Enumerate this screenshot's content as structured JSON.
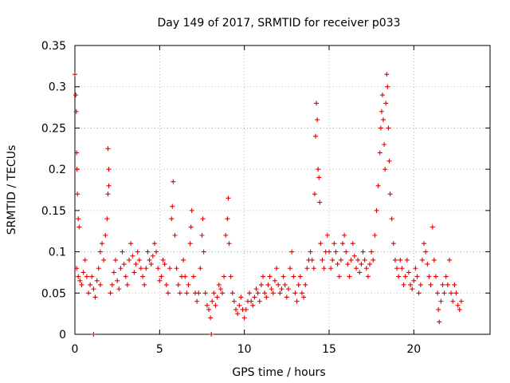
{
  "chart_data": {
    "type": "scatter",
    "title": "Day 149 of 2017, SRMTID for receiver p033",
    "xlabel": "GPS time / hours",
    "ylabel": "SRMTID / TECUs",
    "xlim": [
      0,
      24.5
    ],
    "ylim": [
      0,
      0.35
    ],
    "xticks": [
      0,
      5,
      10,
      15,
      20
    ],
    "yticks": [
      0,
      0.05,
      0.1,
      0.15,
      0.2,
      0.25,
      0.3,
      0.35
    ],
    "xtick_labels": [
      "0",
      "5",
      "10",
      "15",
      "20"
    ],
    "ytick_labels": [
      "0",
      "0.05",
      "0.1",
      "0.15",
      "0.2",
      "0.25",
      "0.3",
      "0.35"
    ],
    "grid": true,
    "marker": "+",
    "color": "#e00000",
    "series": [
      {
        "name": "SRMTID",
        "points": [
          [
            0.0,
            0.315
          ],
          [
            0.05,
            0.29
          ],
          [
            0.08,
            0.27
          ],
          [
            0.1,
            0.22
          ],
          [
            0.12,
            0.2
          ],
          [
            0.15,
            0.17
          ],
          [
            0.2,
            0.14
          ],
          [
            0.25,
            0.13
          ],
          [
            0.1,
            0.08
          ],
          [
            0.2,
            0.07
          ],
          [
            0.3,
            0.065
          ],
          [
            0.4,
            0.06
          ],
          [
            0.5,
            0.075
          ],
          [
            0.6,
            0.09
          ],
          [
            0.7,
            0.07
          ],
          [
            0.8,
            0.05
          ],
          [
            0.9,
            0.06
          ],
          [
            1.0,
            0.07
          ],
          [
            1.1,
            0.055
          ],
          [
            1.2,
            0.045
          ],
          [
            1.3,
            0.065
          ],
          [
            1.4,
            0.08
          ],
          [
            1.5,
            0.1
          ],
          [
            1.6,
            0.11
          ],
          [
            1.1,
            0.0
          ],
          [
            1.5,
            0.06
          ],
          [
            1.7,
            0.09
          ],
          [
            1.8,
            0.12
          ],
          [
            1.9,
            0.14
          ],
          [
            1.95,
            0.17
          ],
          [
            2.0,
            0.18
          ],
          [
            2.0,
            0.2
          ],
          [
            1.95,
            0.225
          ],
          [
            2.1,
            0.05
          ],
          [
            2.2,
            0.06
          ],
          [
            2.3,
            0.075
          ],
          [
            2.4,
            0.09
          ],
          [
            2.5,
            0.065
          ],
          [
            2.6,
            0.055
          ],
          [
            2.7,
            0.08
          ],
          [
            2.8,
            0.1
          ],
          [
            2.9,
            0.085
          ],
          [
            3.0,
            0.07
          ],
          [
            3.1,
            0.06
          ],
          [
            3.2,
            0.09
          ],
          [
            3.3,
            0.11
          ],
          [
            3.4,
            0.095
          ],
          [
            3.5,
            0.075
          ],
          [
            3.6,
            0.085
          ],
          [
            3.7,
            0.1
          ],
          [
            3.8,
            0.09
          ],
          [
            3.9,
            0.08
          ],
          [
            4.0,
            0.07
          ],
          [
            4.1,
            0.06
          ],
          [
            4.2,
            0.08
          ],
          [
            4.3,
            0.1
          ],
          [
            4.4,
            0.09
          ],
          [
            4.5,
            0.085
          ],
          [
            4.6,
            0.095
          ],
          [
            4.7,
            0.11
          ],
          [
            4.8,
            0.1
          ],
          [
            4.9,
            0.08
          ],
          [
            5.0,
            0.065
          ],
          [
            5.1,
            0.07
          ],
          [
            5.2,
            0.09
          ],
          [
            5.3,
            0.085
          ],
          [
            5.4,
            0.06
          ],
          [
            5.5,
            0.05
          ],
          [
            5.6,
            0.08
          ],
          [
            5.7,
            0.14
          ],
          [
            5.75,
            0.155
          ],
          [
            5.8,
            0.185
          ],
          [
            5.9,
            0.12
          ],
          [
            6.0,
            0.08
          ],
          [
            6.1,
            0.06
          ],
          [
            6.2,
            0.05
          ],
          [
            6.3,
            0.07
          ],
          [
            6.4,
            0.09
          ],
          [
            6.5,
            0.07
          ],
          [
            6.6,
            0.05
          ],
          [
            6.7,
            0.06
          ],
          [
            6.8,
            0.11
          ],
          [
            6.85,
            0.13
          ],
          [
            6.9,
            0.15
          ],
          [
            7.0,
            0.07
          ],
          [
            7.1,
            0.05
          ],
          [
            7.2,
            0.04
          ],
          [
            7.3,
            0.05
          ],
          [
            7.4,
            0.08
          ],
          [
            7.5,
            0.12
          ],
          [
            7.55,
            0.14
          ],
          [
            7.6,
            0.1
          ],
          [
            7.7,
            0.05
          ],
          [
            7.8,
            0.035
          ],
          [
            7.9,
            0.03
          ],
          [
            8.0,
            0.02
          ],
          [
            8.05,
            0.0
          ],
          [
            8.1,
            0.04
          ],
          [
            8.2,
            0.05
          ],
          [
            8.3,
            0.035
          ],
          [
            8.4,
            0.045
          ],
          [
            8.5,
            0.06
          ],
          [
            8.6,
            0.055
          ],
          [
            8.7,
            0.05
          ],
          [
            8.8,
            0.07
          ],
          [
            8.9,
            0.12
          ],
          [
            9.0,
            0.14
          ],
          [
            9.05,
            0.165
          ],
          [
            9.1,
            0.11
          ],
          [
            9.2,
            0.07
          ],
          [
            9.3,
            0.05
          ],
          [
            9.4,
            0.04
          ],
          [
            9.5,
            0.03
          ],
          [
            9.6,
            0.025
          ],
          [
            9.7,
            0.035
          ],
          [
            9.8,
            0.045
          ],
          [
            9.9,
            0.03
          ],
          [
            10.0,
            0.02
          ],
          [
            10.1,
            0.03
          ],
          [
            10.2,
            0.04
          ],
          [
            10.3,
            0.05
          ],
          [
            10.4,
            0.04
          ],
          [
            10.5,
            0.035
          ],
          [
            10.6,
            0.045
          ],
          [
            10.7,
            0.055
          ],
          [
            10.8,
            0.05
          ],
          [
            10.9,
            0.04
          ],
          [
            11.0,
            0.06
          ],
          [
            11.1,
            0.07
          ],
          [
            11.2,
            0.05
          ],
          [
            11.3,
            0.045
          ],
          [
            11.4,
            0.06
          ],
          [
            11.5,
            0.07
          ],
          [
            11.6,
            0.055
          ],
          [
            11.7,
            0.05
          ],
          [
            11.8,
            0.065
          ],
          [
            11.9,
            0.08
          ],
          [
            12.0,
            0.06
          ],
          [
            12.1,
            0.05
          ],
          [
            12.2,
            0.055
          ],
          [
            12.3,
            0.07
          ],
          [
            12.4,
            0.06
          ],
          [
            12.5,
            0.045
          ],
          [
            12.6,
            0.055
          ],
          [
            12.7,
            0.08
          ],
          [
            12.8,
            0.1
          ],
          [
            12.9,
            0.07
          ],
          [
            13.0,
            0.05
          ],
          [
            13.1,
            0.04
          ],
          [
            13.2,
            0.06
          ],
          [
            13.3,
            0.07
          ],
          [
            13.4,
            0.05
          ],
          [
            13.5,
            0.045
          ],
          [
            13.6,
            0.06
          ],
          [
            13.7,
            0.08
          ],
          [
            13.8,
            0.09
          ],
          [
            13.9,
            0.1
          ],
          [
            14.0,
            0.09
          ],
          [
            14.1,
            0.08
          ],
          [
            14.15,
            0.17
          ],
          [
            14.2,
            0.24
          ],
          [
            14.25,
            0.28
          ],
          [
            14.3,
            0.26
          ],
          [
            14.35,
            0.2
          ],
          [
            14.4,
            0.19
          ],
          [
            14.45,
            0.16
          ],
          [
            14.5,
            0.11
          ],
          [
            14.6,
            0.09
          ],
          [
            14.7,
            0.08
          ],
          [
            14.8,
            0.1
          ],
          [
            14.9,
            0.12
          ],
          [
            15.0,
            0.1
          ],
          [
            15.1,
            0.08
          ],
          [
            15.2,
            0.09
          ],
          [
            15.3,
            0.11
          ],
          [
            15.4,
            0.1
          ],
          [
            15.5,
            0.085
          ],
          [
            15.6,
            0.07
          ],
          [
            15.7,
            0.09
          ],
          [
            15.8,
            0.11
          ],
          [
            15.9,
            0.12
          ],
          [
            16.0,
            0.1
          ],
          [
            16.1,
            0.085
          ],
          [
            16.2,
            0.07
          ],
          [
            16.3,
            0.09
          ],
          [
            16.4,
            0.11
          ],
          [
            16.5,
            0.095
          ],
          [
            16.6,
            0.08
          ],
          [
            16.7,
            0.09
          ],
          [
            16.8,
            0.075
          ],
          [
            16.9,
            0.085
          ],
          [
            17.0,
            0.1
          ],
          [
            17.1,
            0.09
          ],
          [
            17.2,
            0.08
          ],
          [
            17.3,
            0.07
          ],
          [
            17.4,
            0.085
          ],
          [
            17.5,
            0.1
          ],
          [
            17.6,
            0.09
          ],
          [
            17.7,
            0.12
          ],
          [
            17.8,
            0.15
          ],
          [
            17.9,
            0.18
          ],
          [
            18.0,
            0.22
          ],
          [
            18.05,
            0.25
          ],
          [
            18.1,
            0.27
          ],
          [
            18.15,
            0.29
          ],
          [
            18.2,
            0.26
          ],
          [
            18.25,
            0.23
          ],
          [
            18.3,
            0.2
          ],
          [
            18.35,
            0.28
          ],
          [
            18.4,
            0.315
          ],
          [
            18.45,
            0.3
          ],
          [
            18.5,
            0.25
          ],
          [
            18.55,
            0.21
          ],
          [
            18.6,
            0.17
          ],
          [
            18.7,
            0.14
          ],
          [
            18.8,
            0.11
          ],
          [
            18.9,
            0.09
          ],
          [
            19.0,
            0.08
          ],
          [
            19.1,
            0.07
          ],
          [
            19.2,
            0.09
          ],
          [
            19.3,
            0.08
          ],
          [
            19.4,
            0.06
          ],
          [
            19.5,
            0.07
          ],
          [
            19.6,
            0.09
          ],
          [
            19.7,
            0.075
          ],
          [
            19.8,
            0.06
          ],
          [
            19.9,
            0.055
          ],
          [
            20.0,
            0.065
          ],
          [
            20.1,
            0.08
          ],
          [
            20.2,
            0.07
          ],
          [
            20.3,
            0.05
          ],
          [
            20.4,
            0.06
          ],
          [
            20.5,
            0.09
          ],
          [
            20.6,
            0.11
          ],
          [
            20.7,
            0.1
          ],
          [
            20.8,
            0.085
          ],
          [
            20.9,
            0.07
          ],
          [
            21.0,
            0.06
          ],
          [
            21.1,
            0.13
          ],
          [
            21.2,
            0.09
          ],
          [
            21.3,
            0.07
          ],
          [
            21.4,
            0.05
          ],
          [
            21.45,
            0.03
          ],
          [
            21.5,
            0.015
          ],
          [
            21.6,
            0.04
          ],
          [
            21.7,
            0.06
          ],
          [
            21.8,
            0.05
          ],
          [
            21.9,
            0.07
          ],
          [
            22.0,
            0.06
          ],
          [
            22.1,
            0.09
          ],
          [
            22.2,
            0.05
          ],
          [
            22.3,
            0.04
          ],
          [
            22.4,
            0.06
          ],
          [
            22.5,
            0.05
          ],
          [
            22.6,
            0.035
          ],
          [
            22.7,
            0.03
          ],
          [
            22.8,
            0.04
          ]
        ]
      }
    ]
  }
}
